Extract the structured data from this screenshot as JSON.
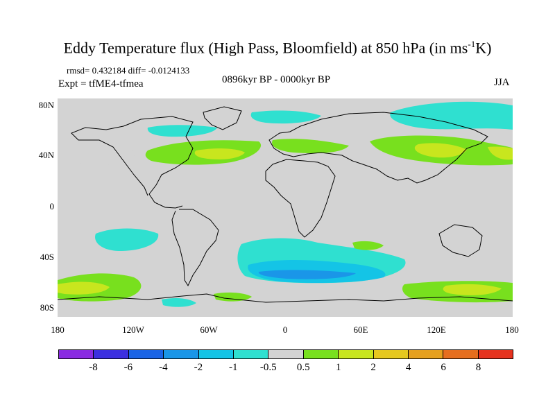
{
  "title": {
    "main": "Eddy Temperature flux (High Pass, Bloomfield) at 850 hPa (in ms",
    "sup": "-1",
    "tail": "K)"
  },
  "stats": "rmsd= 0.432184 diff= -0.0124133",
  "expt": "Expt = tfME4-tfmea",
  "period": "0896kyr BP - 0000kyr BP",
  "season": "JJA",
  "y_labels": [
    "80N",
    "40N",
    "0",
    "40S",
    "80S"
  ],
  "x_labels": [
    "180",
    "120W",
    "60W",
    "0",
    "60E",
    "120E",
    "180"
  ],
  "colorbar": {
    "colors": [
      "#8a2be2",
      "#3c2fe0",
      "#1a64e6",
      "#1a96e8",
      "#14c4e6",
      "#2fe0d0",
      "#d3d3d3",
      "#78e01e",
      "#c8e61e",
      "#e6c81e",
      "#e6a01e",
      "#e66e1e",
      "#e6321e"
    ],
    "labels": [
      "-8",
      "-6",
      "-4",
      "-2",
      "-1",
      "-0.5",
      "0.5",
      "1",
      "2",
      "4",
      "6",
      "8"
    ]
  },
  "map_colors": {
    "background": "#d3d3d3",
    "coast": "#000000"
  }
}
